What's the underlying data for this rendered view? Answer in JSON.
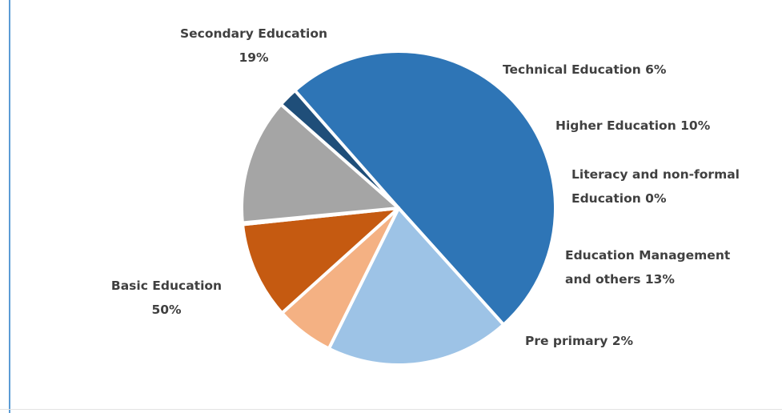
{
  "chart_data": {
    "type": "pie",
    "title": "",
    "slices": [
      {
        "name": "Basic Education",
        "value": 50,
        "label_lines": [
          "Basic Education",
          "50%"
        ],
        "color": "#2e75b6"
      },
      {
        "name": "Secondary Education",
        "value": 19,
        "label_lines": [
          "Secondary Education",
          "19%"
        ],
        "color": "#9dc3e6"
      },
      {
        "name": "Technical Education",
        "value": 6,
        "label_lines": [
          "Technical Education 6%"
        ],
        "color": "#f4b183"
      },
      {
        "name": "Higher Education",
        "value": 10,
        "label_lines": [
          "Higher Education 10%"
        ],
        "color": "#c55a11"
      },
      {
        "name": "Literacy and non-formal Education",
        "value": 0,
        "label_lines": [
          "Literacy and non-formal",
          "Education 0%"
        ],
        "color": "#7f6000"
      },
      {
        "name": "Education Management and others",
        "value": 13,
        "label_lines": [
          "Education Management",
          "and others 13%"
        ],
        "color": "#a5a5a5"
      },
      {
        "name": "Pre primary",
        "value": 2,
        "label_lines": [
          "Pre primary 2%"
        ],
        "color": "#1f4e79"
      }
    ]
  }
}
